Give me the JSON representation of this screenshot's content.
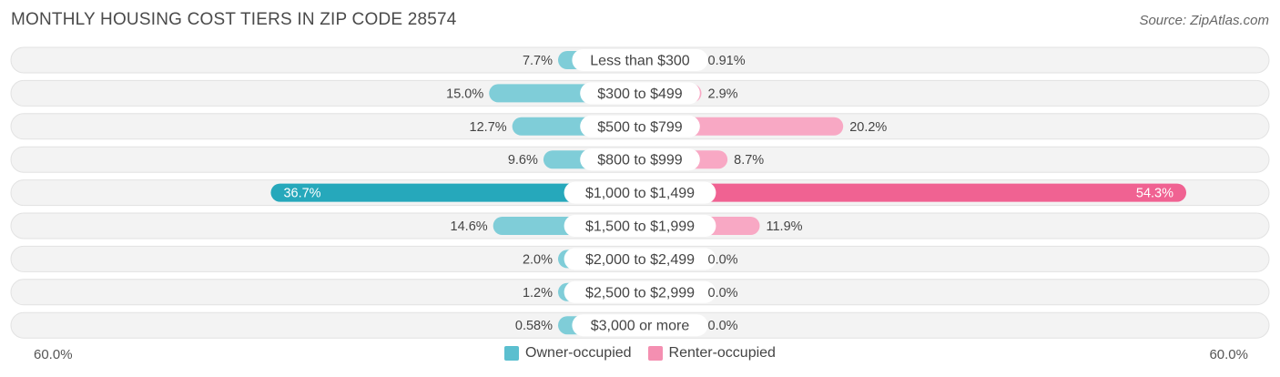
{
  "title": "MONTHLY HOUSING COST TIERS IN ZIP CODE 28574",
  "source": "Source: ZipAtlas.com",
  "axis": {
    "left_label": "60.0%",
    "right_label": "60.0%"
  },
  "legend": [
    {
      "label": "Owner-occupied",
      "color": "#5bbfcf"
    },
    {
      "label": "Renter-occupied",
      "color": "#f48fb1"
    }
  ],
  "colors": {
    "owner": "#7fcdd8",
    "owner_strong": "#26a8bb",
    "renter": "#f8a8c4",
    "renter_strong": "#f06292",
    "row_bg": "#eeeeee"
  },
  "chart_data": {
    "type": "bar",
    "orientation": "horizontal-diverging",
    "title": "MONTHLY HOUSING COST TIERS IN ZIP CODE 28574",
    "xlim": [
      -60,
      60
    ],
    "categories": [
      "Less than $300",
      "$300 to $499",
      "$500 to $799",
      "$800 to $999",
      "$1,000 to $1,499",
      "$1,500 to $1,999",
      "$2,000 to $2,499",
      "$2,500 to $2,999",
      "$3,000 or more"
    ],
    "series": [
      {
        "name": "Owner-occupied",
        "values": [
          7.7,
          15.0,
          12.7,
          9.6,
          36.7,
          14.6,
          2.0,
          1.2,
          0.58
        ],
        "labels": [
          "7.7%",
          "15.0%",
          "12.7%",
          "9.6%",
          "36.7%",
          "14.6%",
          "2.0%",
          "1.2%",
          "0.58%"
        ]
      },
      {
        "name": "Renter-occupied",
        "values": [
          0.91,
          2.9,
          20.2,
          8.7,
          54.3,
          11.9,
          0.0,
          0.0,
          0.0
        ],
        "labels": [
          "0.91%",
          "2.9%",
          "20.2%",
          "8.7%",
          "54.3%",
          "11.9%",
          "0.0%",
          "0.0%",
          "0.0%"
        ]
      }
    ],
    "legend_position": "bottom-center"
  }
}
